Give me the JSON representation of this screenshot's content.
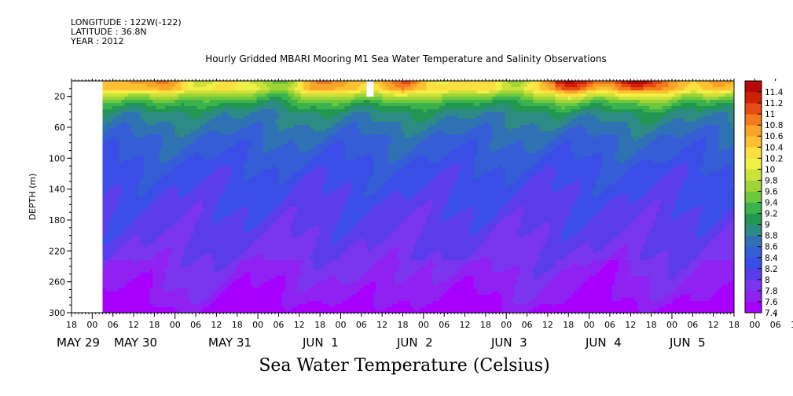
{
  "meta": {
    "longitude": "LONGITUDE : 122W(-122)",
    "latitude": "LATITUDE : 36.8N",
    "year": "YEAR : 2012"
  },
  "plot_title": "Hourly Gridded MBARI Mooring M1 Sea Water Temperature and Salinity Observations",
  "variable_title": "Sea Water Temperature (Celsius)",
  "chart_data": {
    "type": "heatmap",
    "title": "Hourly Gridded MBARI Mooring M1 Sea Water Temperature and Salinity Observations",
    "colorbar_title": "Sea Water Temperature (Celsius)",
    "ylabel": "DEPTH (m)",
    "ylim": [
      300,
      0
    ],
    "y_ticks": [
      20,
      60,
      100,
      140,
      180,
      220,
      260,
      300
    ],
    "x_hour_ticks": [
      "18",
      "00",
      "06",
      "12",
      "18",
      "00",
      "06",
      "12",
      "18",
      "00",
      "06",
      "12",
      "18",
      "00",
      "06",
      "12",
      "18",
      "00",
      "06",
      "12",
      "18",
      "00",
      "06",
      "12",
      "18",
      "00",
      "06",
      "12",
      "18",
      "00",
      "06",
      "12",
      "18",
      "00",
      "06",
      "12",
      "18"
    ],
    "x_day_labels": [
      "MAY 29",
      "MAY 30",
      "MAY 31",
      "JUN  1",
      "JUN  2",
      "JUN  3",
      "JUN  4",
      "JUN  5"
    ],
    "x_range": [
      "2012-05-28 18:00",
      "2012-06-05 18:00"
    ],
    "data_start": "2012-05-29 03:00",
    "colorbar": {
      "levels": [
        "7.4",
        "7.6",
        "7.8",
        "8",
        "8.2",
        "8.4",
        "8.6",
        "8.8",
        "9",
        "9.2",
        "9.4",
        "9.6",
        "9.8",
        "10",
        "10.2",
        "10.4",
        "10.6",
        "10.8",
        "11",
        "11.2",
        "11.4"
      ],
      "colors": [
        "#a800ff",
        "#8f22f2",
        "#7a36ee",
        "#5b3cea",
        "#3a4de6",
        "#345dd6",
        "#2f72b4",
        "#2e8a84",
        "#229752",
        "#3cb24c",
        "#6ec83c",
        "#a0d436",
        "#cce23a",
        "#f0f046",
        "#fce040",
        "#fcc030",
        "#fba228",
        "#f47a1e",
        "#e84a14",
        "#d02008",
        "#b80808"
      ]
    },
    "profile": [
      {
        "depth": 8,
        "temp": 10.3
      },
      {
        "depth": 15,
        "temp": 9.8
      },
      {
        "depth": 25,
        "temp": 9.3
      },
      {
        "depth": 40,
        "temp": 8.9
      },
      {
        "depth": 70,
        "temp": 8.6
      },
      {
        "depth": 120,
        "temp": 8.3
      },
      {
        "depth": 180,
        "temp": 8.1
      },
      {
        "depth": 240,
        "temp": 7.9
      },
      {
        "depth": 280,
        "temp": 7.7
      },
      {
        "depth": 300,
        "temp": 7.5
      }
    ]
  }
}
